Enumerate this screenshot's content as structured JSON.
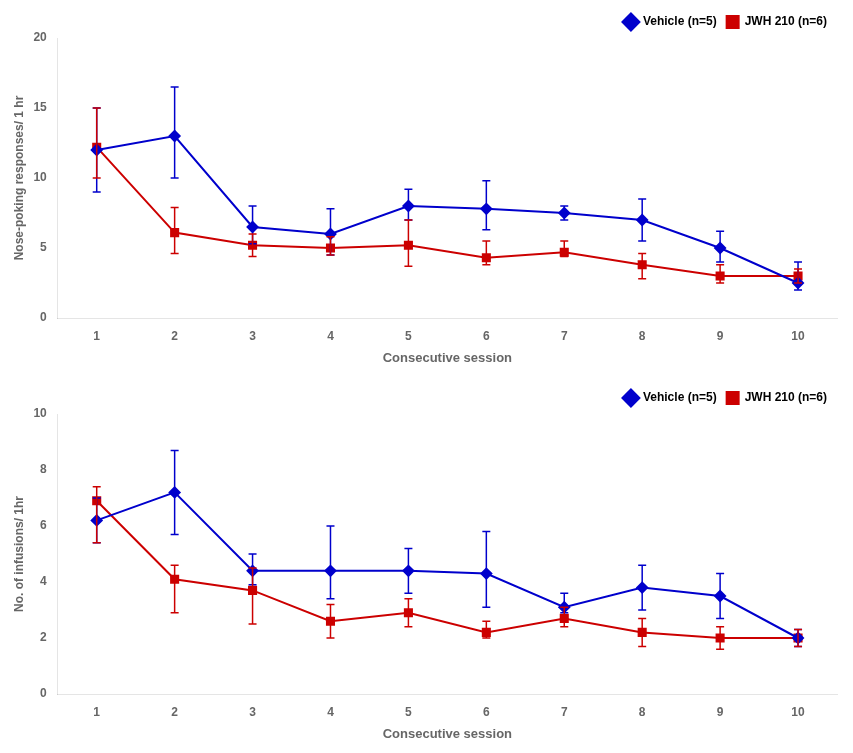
{
  "chart_data": [
    {
      "type": "line",
      "x": [
        1,
        2,
        3,
        4,
        5,
        6,
        7,
        8,
        9,
        10
      ],
      "xlabel": "Consecutive session",
      "ylabel": "Nose-poking responses/ 1 hr",
      "xlim": [
        0.5,
        10.5
      ],
      "xticks": [
        1,
        2,
        3,
        4,
        5,
        6,
        7,
        8,
        9,
        10
      ],
      "ylim": [
        0,
        20
      ],
      "yticks": [
        0,
        5,
        10,
        15,
        20
      ],
      "grid": false,
      "legend": "upper right",
      "series": [
        {
          "name": "Vehicle (n=5)",
          "color": "#0000CC",
          "marker": "diamond",
          "values": [
            12.0,
            13.0,
            6.5,
            6.0,
            8.0,
            7.8,
            7.5,
            7.0,
            5.0,
            2.5
          ],
          "error_upper": [
            3.0,
            3.5,
            1.5,
            1.8,
            1.2,
            2.0,
            0.5,
            1.5,
            1.2,
            1.5
          ],
          "error_lower": [
            3.0,
            3.0,
            1.2,
            1.5,
            1.0,
            1.5,
            0.5,
            1.5,
            1.0,
            0.5
          ]
        },
        {
          "name": "JWH 210 (n=6)",
          "color": "#CC0000",
          "marker": "square",
          "values": [
            12.2,
            6.1,
            5.2,
            5.0,
            5.2,
            4.3,
            4.7,
            3.8,
            3.0,
            3.0
          ],
          "error_upper": [
            2.8,
            1.8,
            0.8,
            0.8,
            1.8,
            1.2,
            0.8,
            0.8,
            0.8,
            0.5
          ],
          "error_lower": [
            2.2,
            1.5,
            0.8,
            0.5,
            1.5,
            0.5,
            0.3,
            1.0,
            0.5,
            0.5
          ]
        }
      ]
    },
    {
      "type": "line",
      "x": [
        1,
        2,
        3,
        4,
        5,
        6,
        7,
        8,
        9,
        10
      ],
      "xlabel": "Consecutive session",
      "ylabel": "No. of infusions/ 1hr",
      "xlim": [
        0.5,
        10.5
      ],
      "xticks": [
        1,
        2,
        3,
        4,
        5,
        6,
        7,
        8,
        9,
        10
      ],
      "ylim": [
        0,
        10
      ],
      "yticks": [
        0,
        2,
        4,
        6,
        8,
        10
      ],
      "grid": false,
      "legend": "upper right",
      "series": [
        {
          "name": "Vehicle (n=5)",
          "color": "#0000CC",
          "marker": "diamond",
          "values": [
            6.2,
            7.2,
            4.4,
            4.4,
            4.4,
            4.3,
            3.1,
            3.8,
            3.5,
            2.0
          ],
          "error_upper": [
            0.8,
            1.5,
            0.6,
            1.6,
            0.8,
            1.5,
            0.5,
            0.8,
            0.8,
            0.3
          ],
          "error_lower": [
            0.8,
            1.5,
            0.5,
            1.0,
            0.8,
            1.2,
            0.2,
            0.8,
            0.8,
            0.3
          ]
        },
        {
          "name": "JWH 210 (n=6)",
          "color": "#CC0000",
          "marker": "square",
          "values": [
            6.9,
            4.1,
            3.7,
            2.6,
            2.9,
            2.2,
            2.7,
            2.2,
            2.0,
            2.0
          ],
          "error_upper": [
            0.5,
            0.5,
            0.8,
            0.6,
            0.5,
            0.4,
            0.4,
            0.5,
            0.4,
            0.3
          ],
          "error_lower": [
            1.5,
            1.2,
            1.2,
            0.6,
            0.5,
            0.2,
            0.3,
            0.5,
            0.4,
            0.3
          ]
        }
      ]
    }
  ]
}
